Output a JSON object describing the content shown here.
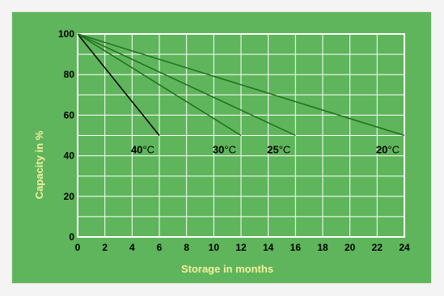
{
  "chart_data": {
    "type": "line",
    "title": "",
    "xlabel": "Storage in months",
    "ylabel": "Capacity in %",
    "xlim": [
      0,
      24
    ],
    "ylim": [
      0,
      100
    ],
    "x_ticks": [
      "0",
      "2",
      "4",
      "6",
      "8",
      "10",
      "12",
      "14",
      "16",
      "18",
      "20",
      "22",
      "24"
    ],
    "y_ticks": [
      "0",
      "20",
      "40",
      "60",
      "80",
      "100"
    ],
    "grid": true,
    "series": [
      {
        "name": "40°C",
        "value_label": "40",
        "unit_label": "°C",
        "color": "#000000",
        "x": [
          0,
          6
        ],
        "y": [
          100,
          50
        ]
      },
      {
        "name": "30°C",
        "value_label": "30",
        "unit_label": "°C",
        "color": "#1f6f1f",
        "x": [
          0,
          12
        ],
        "y": [
          100,
          50
        ]
      },
      {
        "name": "25°C",
        "value_label": "25",
        "unit_label": "°C",
        "color": "#1f6f1f",
        "x": [
          0,
          16
        ],
        "y": [
          100,
          50
        ]
      },
      {
        "name": "20°C",
        "value_label": "20",
        "unit_label": "°C",
        "color": "#1f6f1f",
        "x": [
          0,
          24
        ],
        "y": [
          100,
          50
        ]
      }
    ],
    "colors": {
      "panel_background": "#5fb55b",
      "grid": "#ffffff",
      "axis_title": "#f4f0a0"
    }
  }
}
